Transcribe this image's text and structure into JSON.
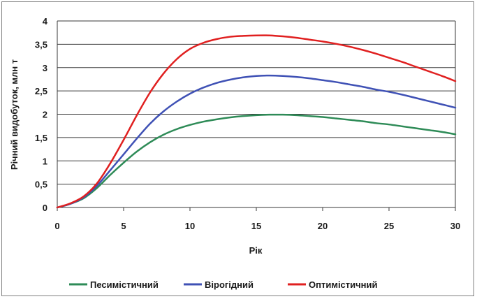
{
  "chart_data": {
    "type": "line",
    "title": "",
    "xlabel": "Рік",
    "ylabel": "Річний видобуток, млн т",
    "xlim": [
      0,
      30
    ],
    "ylim": [
      0,
      4
    ],
    "grid": "horizontal",
    "legend_position": "bottom",
    "x_ticks": [
      "0",
      "5",
      "10",
      "15",
      "20",
      "25",
      "30"
    ],
    "y_ticks": [
      "0",
      "0,5",
      "1",
      "1,5",
      "2",
      "2,5",
      "3",
      "3,5",
      "4"
    ],
    "x": [
      0,
      1,
      2,
      3,
      4,
      5,
      6,
      7,
      8,
      9,
      10,
      11,
      12,
      13,
      14,
      15,
      16,
      17,
      18,
      19,
      20,
      21,
      22,
      23,
      24,
      25,
      26,
      27,
      28,
      29,
      30
    ],
    "series": [
      {
        "name": "Песимістичний",
        "color": "#2e8b57",
        "values": [
          0,
          0.08,
          0.2,
          0.42,
          0.7,
          0.96,
          1.2,
          1.4,
          1.56,
          1.68,
          1.77,
          1.84,
          1.89,
          1.93,
          1.96,
          1.98,
          1.99,
          1.99,
          1.98,
          1.96,
          1.94,
          1.91,
          1.88,
          1.85,
          1.81,
          1.78,
          1.74,
          1.7,
          1.66,
          1.62,
          1.57
        ]
      },
      {
        "name": "Вірогідний",
        "color": "#3f51b5",
        "values": [
          0,
          0.08,
          0.22,
          0.47,
          0.8,
          1.14,
          1.48,
          1.8,
          2.06,
          2.27,
          2.44,
          2.57,
          2.67,
          2.74,
          2.79,
          2.82,
          2.83,
          2.82,
          2.8,
          2.77,
          2.73,
          2.69,
          2.64,
          2.59,
          2.53,
          2.48,
          2.42,
          2.35,
          2.28,
          2.21,
          2.14
        ]
      },
      {
        "name": "Оптимістичний",
        "color": "#e02020",
        "values": [
          0,
          0.09,
          0.24,
          0.52,
          0.95,
          1.45,
          1.98,
          2.47,
          2.87,
          3.18,
          3.4,
          3.53,
          3.61,
          3.66,
          3.68,
          3.69,
          3.69,
          3.67,
          3.64,
          3.6,
          3.56,
          3.51,
          3.45,
          3.38,
          3.3,
          3.21,
          3.12,
          3.02,
          2.92,
          2.82,
          2.71
        ]
      }
    ]
  }
}
